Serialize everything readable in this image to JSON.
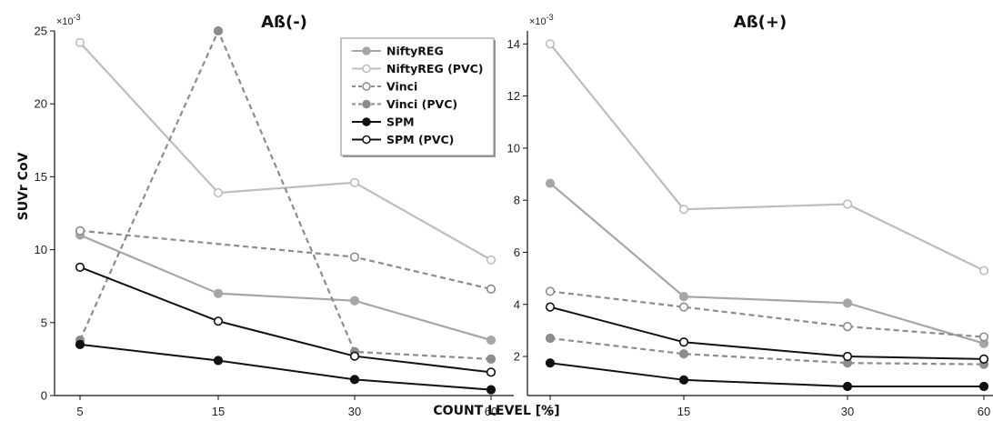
{
  "figure": {
    "xlabel": "COUNT LEVEL [%]",
    "ylabel": "SUVr CoV"
  },
  "legend": {
    "placement": "top-right of left panel",
    "entries": [
      {
        "label": "NiftyREG",
        "color": "#a6a6a6",
        "dash": "solid",
        "marker": "filled"
      },
      {
        "label": "NiftyREG (PVC)",
        "color": "#bdbdbd",
        "dash": "solid",
        "marker": "open"
      },
      {
        "label": "Vinci",
        "color": "#8c8c8c",
        "dash": "dashed",
        "marker": "open"
      },
      {
        "label": "Vinci (PVC)",
        "color": "#8c8c8c",
        "dash": "dashed",
        "marker": "filled"
      },
      {
        "label": "SPM",
        "color": "#111111",
        "dash": "solid",
        "marker": "filled"
      },
      {
        "label": "SPM (PVC)",
        "color": "#111111",
        "dash": "solid",
        "marker": "open"
      }
    ]
  },
  "chart_data": [
    {
      "type": "line",
      "title": "Aß(-)",
      "xlabel": "COUNT LEVEL [%]",
      "ylabel": "SUVr CoV",
      "y_multiplier": "×10-3",
      "x": [
        "5",
        "15",
        "30",
        "60"
      ],
      "ylim": [
        0,
        25
      ],
      "yticks": [
        0,
        5,
        10,
        15,
        20,
        25
      ],
      "grid": false,
      "series": [
        {
          "name": "NiftyREG",
          "values": [
            11.0,
            7.0,
            6.5,
            3.8
          ]
        },
        {
          "name": "NiftyREG (PVC)",
          "values": [
            24.2,
            13.9,
            14.6,
            9.3
          ]
        },
        {
          "name": "Vinci",
          "values": [
            11.3,
            null,
            9.5,
            7.3
          ]
        },
        {
          "name": "Vinci (PVC)",
          "values": [
            3.8,
            25.0,
            3.0,
            2.5
          ]
        },
        {
          "name": "SPM",
          "values": [
            3.5,
            2.4,
            1.1,
            0.4
          ]
        },
        {
          "name": "SPM (PVC)",
          "values": [
            8.8,
            5.1,
            2.7,
            1.6
          ]
        }
      ]
    },
    {
      "type": "line",
      "title": "Aß(+)",
      "xlabel": "COUNT LEVEL [%]",
      "ylabel": "",
      "y_multiplier": "×10-3",
      "x": [
        "5",
        "15",
        "30",
        "60"
      ],
      "ylim": [
        0.5,
        14.5
      ],
      "yticks": [
        2,
        4,
        6,
        8,
        10,
        12,
        14
      ],
      "grid": false,
      "series": [
        {
          "name": "NiftyREG",
          "values": [
            8.65,
            4.3,
            4.05,
            2.5
          ]
        },
        {
          "name": "NiftyREG (PVC)",
          "values": [
            14.0,
            7.65,
            7.85,
            5.3
          ]
        },
        {
          "name": "Vinci",
          "values": [
            4.5,
            3.9,
            3.15,
            2.75
          ]
        },
        {
          "name": "Vinci (PVC)",
          "values": [
            2.7,
            2.1,
            1.75,
            1.7
          ]
        },
        {
          "name": "SPM",
          "values": [
            1.75,
            1.1,
            0.85,
            0.85
          ]
        },
        {
          "name": "SPM (PVC)",
          "values": [
            3.9,
            2.55,
            2.0,
            1.9
          ]
        }
      ]
    }
  ]
}
